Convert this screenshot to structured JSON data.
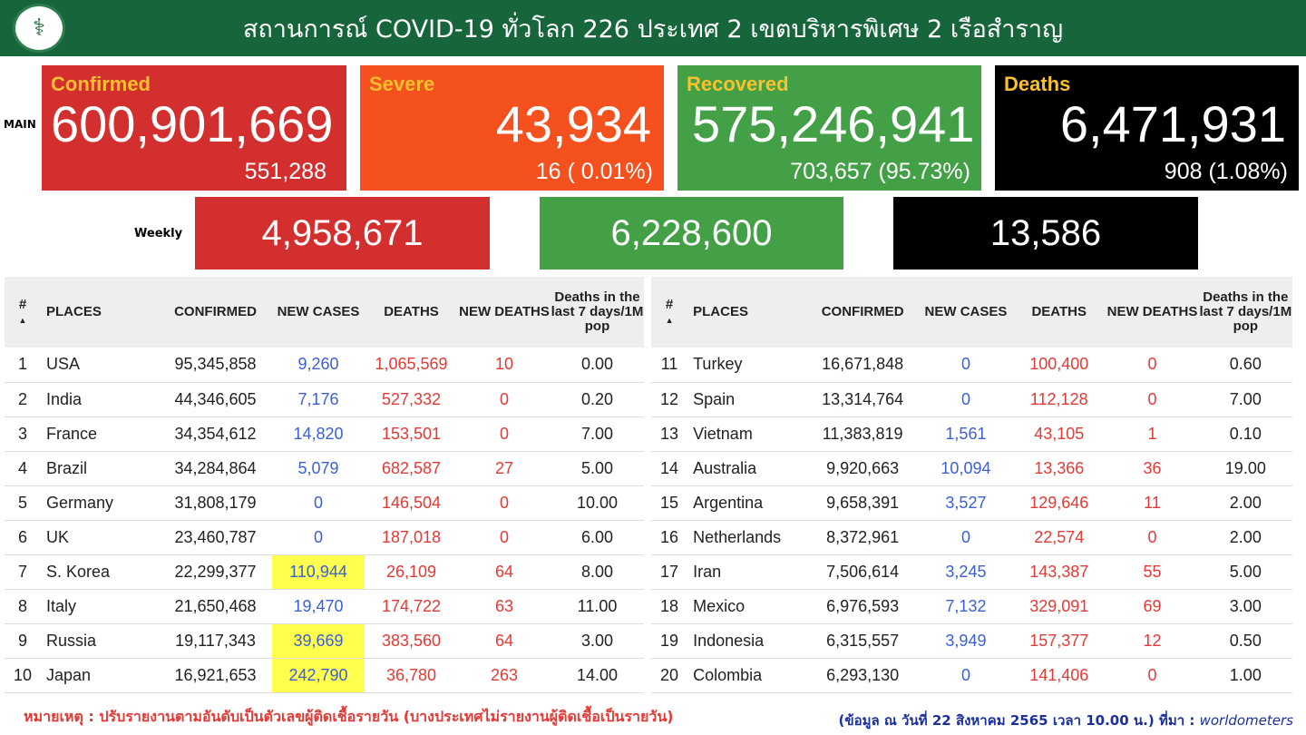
{
  "header": {
    "title": "สถานการณ์ COVID-19 ทั่วโลก 226 ประเทศ 2 เขตบริหารพิเศษ 2 เรือสำราญ",
    "logo": "ministry-of-public-health-seal"
  },
  "main_label": "MAIN",
  "cards": {
    "confirmed": {
      "label": "Confirmed",
      "value": "600,901,669",
      "sub": "551,288",
      "color": "#d32f2f"
    },
    "severe": {
      "label": "Severe",
      "value": "43,934",
      "sub": "16 ( 0.01%)",
      "color": "#f4511e"
    },
    "recovered": {
      "label": "Recovered",
      "value": "575,246,941",
      "sub": "703,657 (95.73%)",
      "color": "#43a047"
    },
    "deaths": {
      "label": "Deaths",
      "value": "6,471,931",
      "sub": "908 (1.08%)",
      "color": "#000000"
    }
  },
  "weekly": {
    "label": "Weekly",
    "confirmed": "4,958,671",
    "recovered": "6,228,600",
    "deaths": "13,586"
  },
  "columns": [
    "#",
    "PLACES",
    "CONFIRMED",
    "NEW CASES",
    "DEATHS",
    "NEW DEATHS",
    "Deaths in the last 7 days/1M pop"
  ],
  "rows_left": [
    [
      "1",
      "USA",
      "95,345,858",
      "9,260",
      "1,065,569",
      "10",
      "0.00"
    ],
    [
      "2",
      "India",
      "44,346,605",
      "7,176",
      "527,332",
      "0",
      "0.20"
    ],
    [
      "3",
      "France",
      "34,354,612",
      "14,820",
      "153,501",
      "0",
      "7.00"
    ],
    [
      "4",
      "Brazil",
      "34,284,864",
      "5,079",
      "682,587",
      "27",
      "5.00"
    ],
    [
      "5",
      "Germany",
      "31,808,179",
      "0",
      "146,504",
      "0",
      "10.00"
    ],
    [
      "6",
      "UK",
      "23,460,787",
      "0",
      "187,018",
      "0",
      "6.00"
    ],
    [
      "7",
      "S. Korea",
      "22,299,377",
      "110,944",
      "26,109",
      "64",
      "8.00"
    ],
    [
      "8",
      "Italy",
      "21,650,468",
      "19,470",
      "174,722",
      "63",
      "11.00"
    ],
    [
      "9",
      "Russia",
      "19,117,343",
      "39,669",
      "383,560",
      "64",
      "3.00"
    ],
    [
      "10",
      "Japan",
      "16,921,653",
      "242,790",
      "36,780",
      "263",
      "14.00"
    ]
  ],
  "rows_right": [
    [
      "11",
      "Turkey",
      "16,671,848",
      "0",
      "100,400",
      "0",
      "0.60"
    ],
    [
      "12",
      "Spain",
      "13,314,764",
      "0",
      "112,128",
      "0",
      "7.00"
    ],
    [
      "13",
      "Vietnam",
      "11,383,819",
      "1,561",
      "43,105",
      "1",
      "0.10"
    ],
    [
      "14",
      "Australia",
      "9,920,663",
      "10,094",
      "13,366",
      "36",
      "19.00"
    ],
    [
      "15",
      "Argentina",
      "9,658,391",
      "3,527",
      "129,646",
      "11",
      "2.00"
    ],
    [
      "16",
      "Netherlands",
      "8,372,961",
      "0",
      "22,574",
      "0",
      "2.00"
    ],
    [
      "17",
      "Iran",
      "7,506,614",
      "3,245",
      "143,387",
      "55",
      "5.00"
    ],
    [
      "18",
      "Mexico",
      "6,976,593",
      "7,132",
      "329,091",
      "69",
      "3.00"
    ],
    [
      "19",
      "Indonesia",
      "6,315,557",
      "3,949",
      "157,377",
      "12",
      "0.50"
    ],
    [
      "20",
      "Colombia",
      "6,293,130",
      "0",
      "141,406",
      "0",
      "1.00"
    ]
  ],
  "highlighted_new_cases": [
    "S. Korea",
    "Russia",
    "Japan"
  ],
  "highlight_color": "#ffff4d",
  "footer": {
    "note": "หมายเหตุ : ปรับรายงานตามอันดับเป็นตัวเลขผู้ติดเชื้อรายวัน (บางประเทศไม่รายงานผู้ติดเชื้อเป็นรายวัน)",
    "source_prefix": "(ข้อมูล ณ วันที่ 22 สิงหาคม 2565 เวลา 10.00 น.) ที่มา : ",
    "source_name": "worldometers"
  }
}
